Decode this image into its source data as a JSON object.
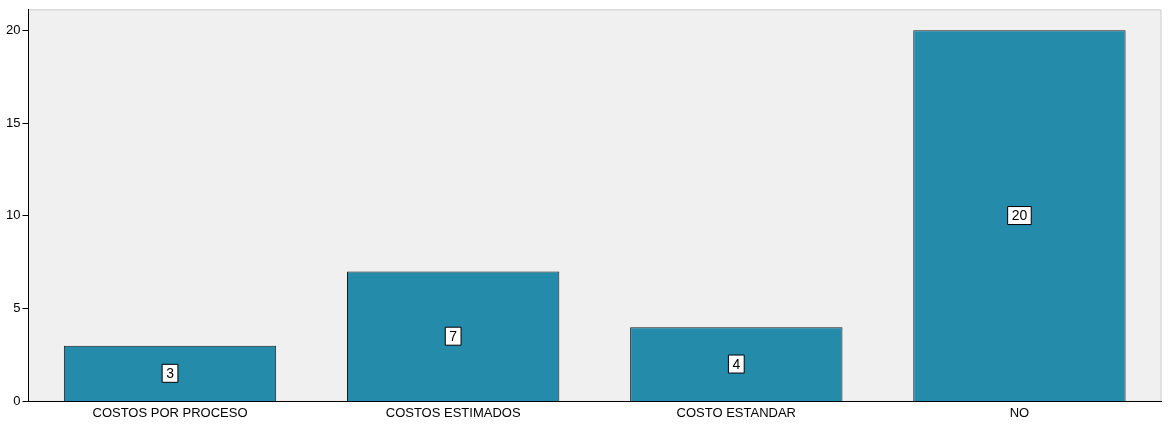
{
  "chart_data": {
    "type": "bar",
    "categories": [
      "COSTOS POR PROCESO",
      "COSTOS ESTIMADOS",
      "COSTO ESTANDAR",
      "NO"
    ],
    "values": [
      3,
      7,
      4,
      20
    ],
    "color": "#248bab",
    "ylim": [
      0,
      21.1
    ],
    "yticks": [
      0,
      5,
      10,
      15,
      20
    ],
    "grid": false,
    "legend": false,
    "data_labels": true
  }
}
